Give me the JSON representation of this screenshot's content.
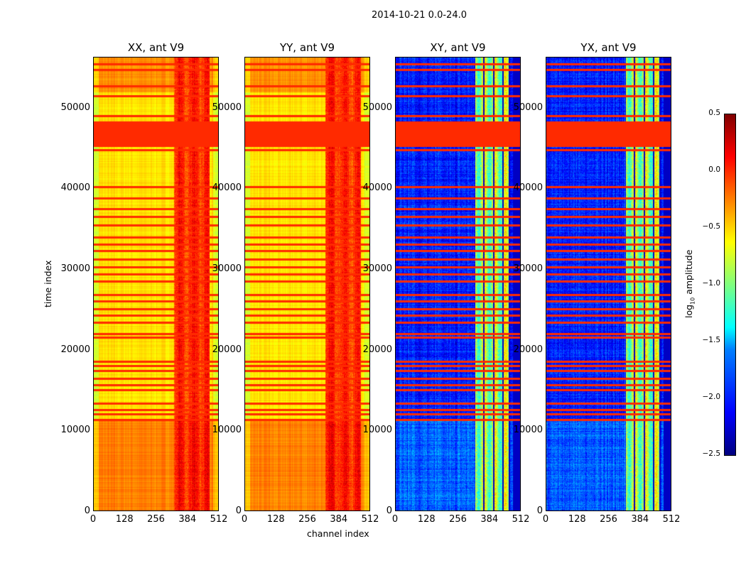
{
  "chart_data": {
    "type": "heatmap",
    "title": "2014-10-21 0.0-24.0",
    "xlabel": "channel index",
    "ylabel": "time index",
    "xlim": [
      0,
      512
    ],
    "ylim": [
      0,
      56300
    ],
    "xticks": [
      "0",
      "128",
      "256",
      "384",
      "512"
    ],
    "yticks": [
      "0",
      "10000",
      "20000",
      "30000",
      "40000",
      "50000"
    ],
    "panels": [
      {
        "title": "XX, ant V9",
        "kind": "auto",
        "show_ylabels": true
      },
      {
        "title": "YY, ant V9",
        "kind": "auto",
        "show_ylabels": true
      },
      {
        "title": "XY, ant V9",
        "kind": "cross",
        "show_ylabels": true
      },
      {
        "title": "YX, ant V9",
        "kind": "cross",
        "show_ylabels": true
      }
    ],
    "flagged_block": [
      45300,
      48400
    ],
    "flagged_rows": [
      11300,
      12000,
      12500,
      13300,
      15000,
      15600,
      16400,
      17400,
      18000,
      18500,
      21500,
      22000,
      23400,
      24300,
      25100,
      26000,
      26800,
      28500,
      29400,
      30300,
      31200,
      32300,
      33100,
      34000,
      35500,
      36500,
      37500,
      38800,
      40200,
      44800,
      49100,
      51500,
      52800,
      54800,
      55500
    ],
    "colorbar": {
      "label_prefix": "log",
      "label_sub": "10",
      "label_suffix": " amplitude",
      "range": [
        -2.5,
        0.5
      ],
      "ticks": [
        "0.5",
        "0.0",
        "−0.5",
        "−1.0",
        "−1.5",
        "−2.0",
        "−2.5"
      ],
      "colormap": "jet"
    }
  }
}
